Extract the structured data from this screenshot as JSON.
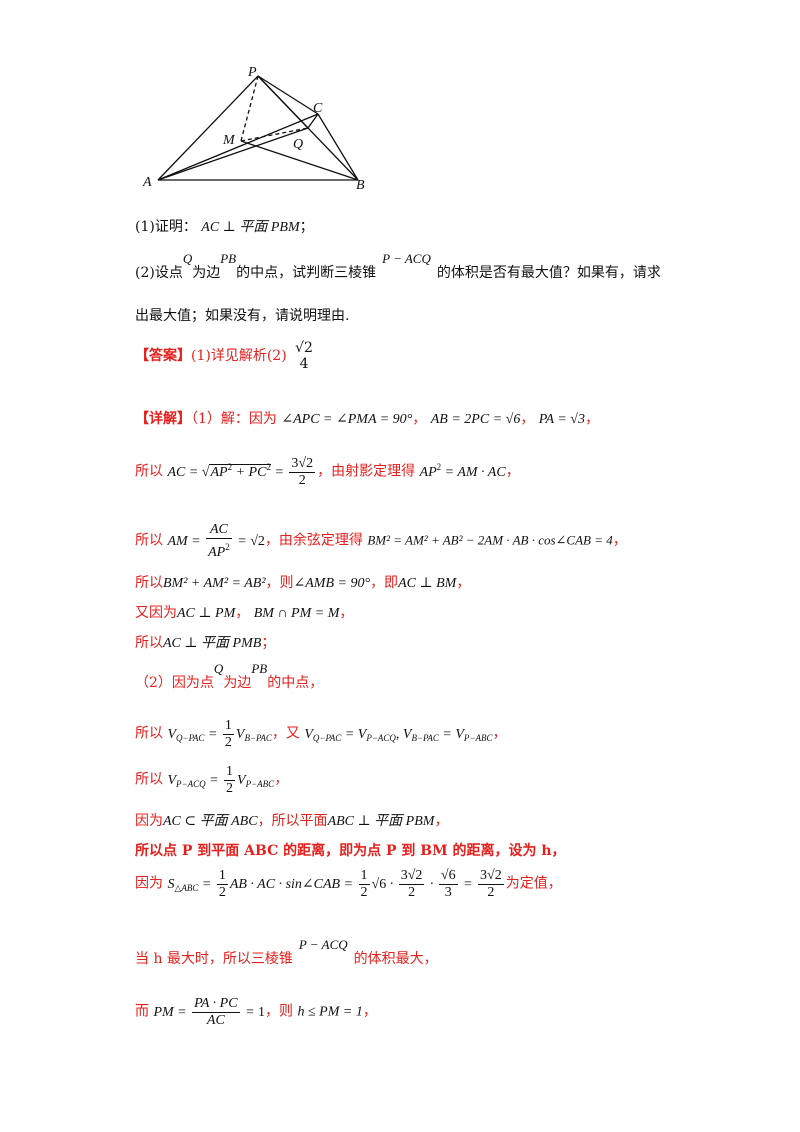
{
  "figure": {
    "labels": {
      "P": "P",
      "C": "C",
      "M": "M",
      "Q": "Q",
      "A": "A",
      "B": "B"
    }
  },
  "problem": {
    "part1_prefix": "(1)证明：",
    "part1_math": "AC ⊥ 平面 PBM",
    "part1_end": "；",
    "part2_a": "(2)设点",
    "part2_Q": "Q",
    "part2_b": "为边",
    "part2_PB": "PB",
    "part2_c": "的中点，试判断三棱锥",
    "part2_pyr": "P − ACQ",
    "part2_d": "的体积是否有最大值？如果有，请求",
    "part2_line2": "出最大值；如果没有，请说明理由."
  },
  "answer": {
    "label": "【答案】",
    "text": "(1)详见解析(2)",
    "num": "√2",
    "den": "4"
  },
  "solution": {
    "label": "【详解】",
    "l1_text": "（1）解：因为",
    "l1_m1": "∠APC = ∠PMA = 90°",
    "l1_m2": "AB = 2PC = √6",
    "l1_m3": "PA = √3",
    "l2_so": "所以",
    "l2_mid": "，由射影定理得",
    "l3_so": "所以",
    "l3_mid": "，由余弦定理得",
    "l3_m": "BM² = AM² + AB² − 2AM · AB · cos∠CAB = 4",
    "l4_so": "所以",
    "l4_m1": "BM² + AM² = AB²",
    "l4_then": "，则",
    "l4_m2": "∠AMB = 90°",
    "l4_ie": "，即",
    "l4_m3": "AC ⊥ BM",
    "l5_again": "又因为",
    "l5_m1": "AC ⊥ PM",
    "l5_m2": "BM ∩ PM = M",
    "l6_so": "所以",
    "l6_m": "AC ⊥ 平面 PMB",
    "l7_a": "（2）因为点",
    "l7_Q": "Q",
    "l7_b": "为边",
    "l7_PB": "PB",
    "l7_c": "的中点，",
    "l8_so": "所以",
    "l8_again": "又",
    "l8_m": "V_Q−PAC = V_P−ACQ, V_B−PAC = V_P−ABC",
    "l9_so": "所以",
    "l10_a": "因为",
    "l10_m1": "AC ⊂ 平面 ABC",
    "l10_b": "，所以平面",
    "l10_m2": "ABC ⊥ 平面 PBM",
    "l11": "所以点 P 到平面 ABC 的距离，即为点 P 到 BM 的距离，设为 h，",
    "l12_a": "因为",
    "l12_end": "为定值，",
    "l13_a": "当 h 最大时，所以三棱锥",
    "l13_m": "P − ACQ",
    "l13_b": "的体积最大，",
    "l14_a": "而",
    "l14_then": "，则",
    "l14_m": "h ≤ PM = 1"
  }
}
